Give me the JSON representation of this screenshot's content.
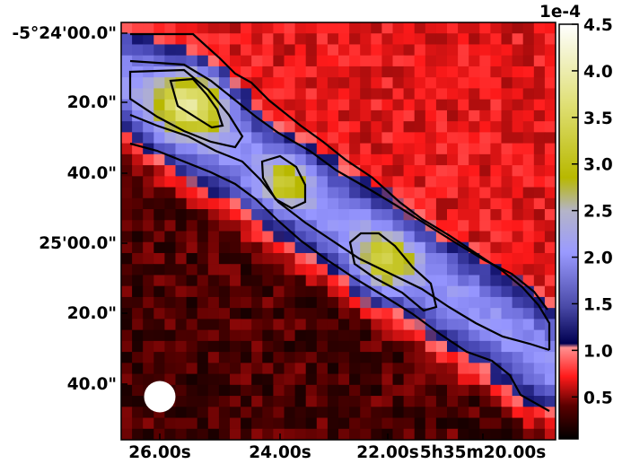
{
  "figure": {
    "colormap_colors": [
      "#000000",
      "#5a0000",
      "#ff1a1a",
      "#ff8080",
      "#000060",
      "#5a5acd",
      "#9a9aff",
      "#b8b800",
      "#ffffcc",
      "#ffffff"
    ],
    "contour_color": "#000000",
    "beam_color": "#ffffff",
    "x_axis": {
      "label": "",
      "ticks": [
        "26.00s",
        "24.00s",
        "22.00s",
        "5h35m20.00s"
      ]
    },
    "y_axis": {
      "label": "",
      "ticks": [
        "-5°24'00.0\"",
        "20.0\"",
        "40.0\"",
        "25'00.0\"",
        "20.0\"",
        "40.0\""
      ]
    },
    "colorbar": {
      "exponent_label": "1e-4",
      "ticks": [
        "4.5",
        "4.0",
        "3.5",
        "3.0",
        "2.5",
        "2.0",
        "1.5",
        "1.0",
        "0.5"
      ],
      "range": [
        0.05,
        4.5
      ]
    }
  }
}
